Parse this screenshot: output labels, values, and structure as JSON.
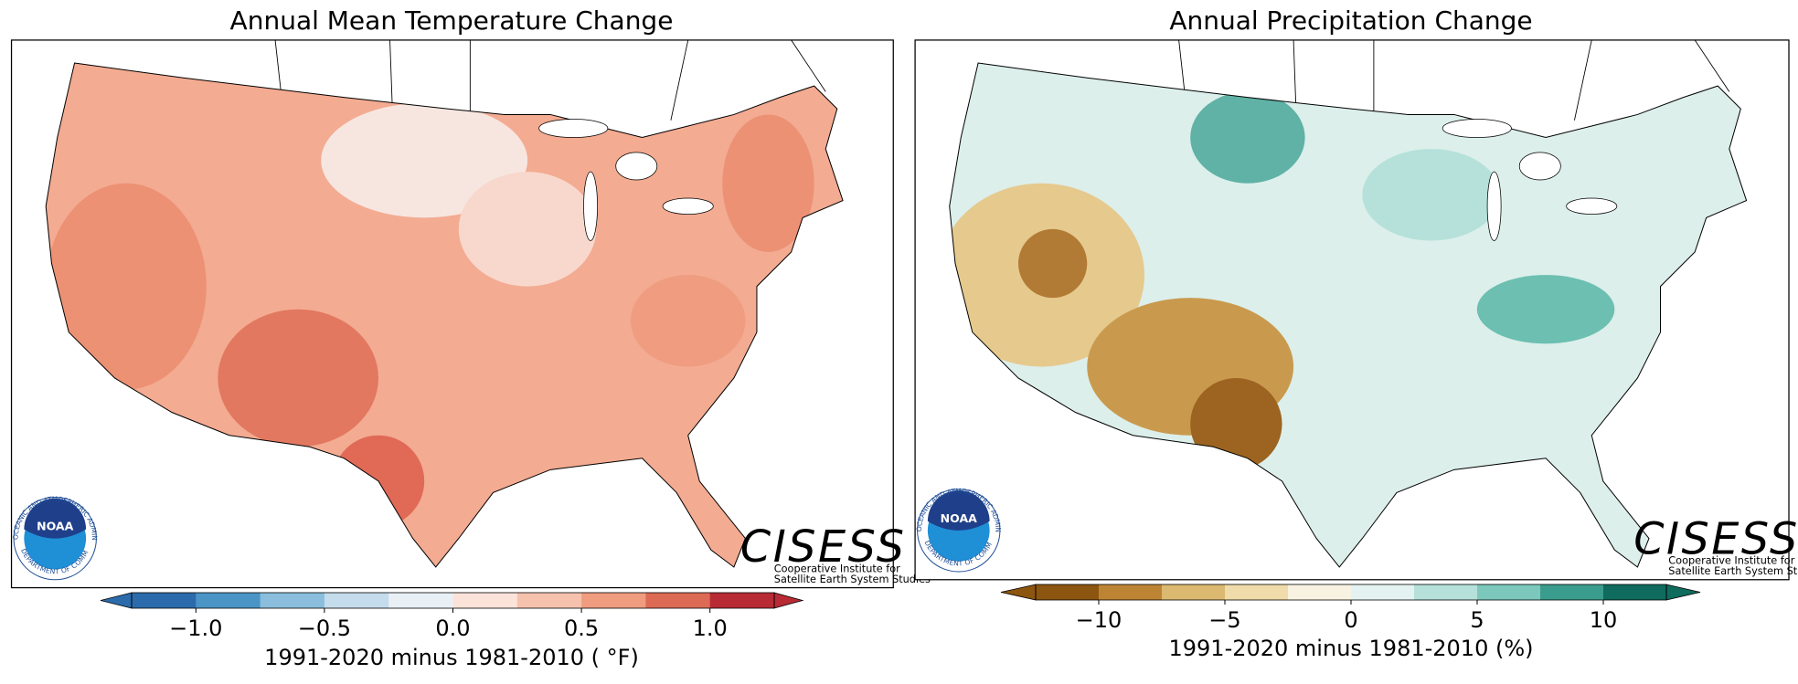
{
  "maps": [
    {
      "title": "Annual Mean Temperature Change",
      "colorbar": {
        "label": "1991-2020 minus 1981-2010 ( °F)",
        "lim": [
          -1.25,
          1.25
        ],
        "ticks": [
          {
            "value": -1.0,
            "label": "−1.0"
          },
          {
            "value": -0.5,
            "label": "−0.5"
          },
          {
            "value": 0,
            "label": "0.0"
          },
          0.5,
          {
            "value": 1.0,
            "label": "1.0"
          }
        ],
        "bounds": [
          -1.25,
          -1.0,
          -0.75,
          -0.5,
          -0.25,
          0,
          0.25,
          0.5,
          0.75,
          1.0,
          1.25
        ],
        "colors": [
          "#2c6bab",
          "#4a94c6",
          "#8abedc",
          "#c4dcec",
          "#e9f0f5",
          "#fbe3da",
          "#f6c2ae",
          "#ef9c7f",
          "#dc6a55",
          "#b82a34"
        ],
        "extend": "both"
      }
    },
    {
      "title": "Annual Precipitation Change",
      "colorbar": {
        "label": "1991-2020 minus 1981-2010 (%)",
        "lim": [
          -12.5,
          12.5
        ],
        "ticks": [
          {
            "value": -10,
            "label": "−10"
          },
          {
            "value": -5,
            "label": "−5"
          },
          0,
          5,
          10
        ],
        "bounds": [
          -12.5,
          -10,
          -7.5,
          -5,
          -2.5,
          0,
          2.5,
          5,
          7.5,
          10,
          12.5
        ],
        "colors": [
          "#8c5510",
          "#bc8433",
          "#dbb970",
          "#f0dcab",
          "#f8f2e2",
          "#e4f3f1",
          "#b5e1da",
          "#7cc8bc",
          "#3a9c8d",
          "#0f6b5e"
        ],
        "extend": "both"
      }
    }
  ],
  "logos": {
    "noaa": "NOAA",
    "noaa_ring_top": "NATIONAL OCEANIC AND ATMOSPHERIC ADMINISTRATION",
    "noaa_ring_bottom": "U.S. DEPARTMENT OF COMMERCE",
    "cisess": "CISESS",
    "cisess_line1": "Cooperative Institute for",
    "cisess_line2": "Satellite Earth System Studies"
  }
}
